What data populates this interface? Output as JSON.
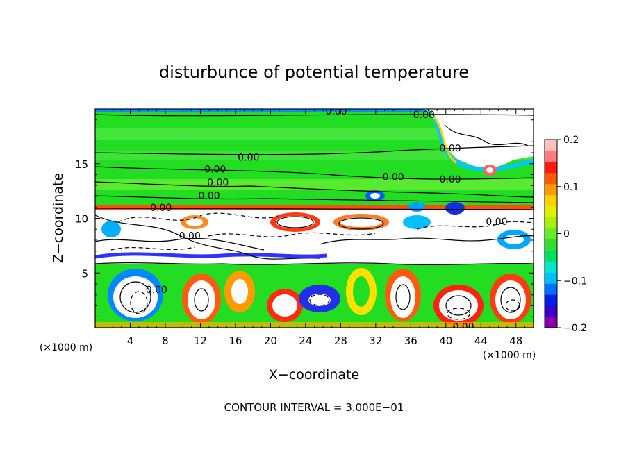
{
  "chart_data": {
    "type": "heatmap",
    "title": "disturbunce of potential temperature",
    "xlabel": "X−coordinate",
    "ylabel": "Z−coordinate",
    "x_unit_note": "(×1000 m)",
    "z_unit_note": "(×1000 m)",
    "xlim": [
      0,
      50
    ],
    "ylim": [
      0,
      20
    ],
    "x_ticks": [
      4,
      8,
      12,
      16,
      20,
      24,
      28,
      32,
      36,
      40,
      44,
      48
    ],
    "y_ticks": [
      5,
      10,
      15
    ],
    "colorbar": {
      "range": [
        -0.2,
        0.2
      ],
      "ticks": [
        {
          "value": 0.2,
          "label": "0.2"
        },
        {
          "value": 0.1,
          "label": "0.1"
        },
        {
          "value": 0,
          "label": "0"
        },
        {
          "value": -0.1,
          "label": "−0.1"
        },
        {
          "value": -0.2,
          "label": "−0.2"
        }
      ],
      "colors": [
        "#8a00a8",
        "#3b00c8",
        "#0020e8",
        "#0070ff",
        "#00bfff",
        "#00e8c8",
        "#00e060",
        "#30e030",
        "#66ee22",
        "#a8f010",
        "#e0f000",
        "#ffd000",
        "#ff9a00",
        "#ff5a00",
        "#ff1a10",
        "#ff7a7a",
        "#ffc0c0"
      ]
    },
    "contour_labels": [
      {
        "x": 27.5,
        "z": 19.8,
        "text": "0.00"
      },
      {
        "x": 37.5,
        "z": 19.5,
        "text": "0.00"
      },
      {
        "x": 40.5,
        "z": 16.4,
        "text": "0.00"
      },
      {
        "x": 17.5,
        "z": 15.6,
        "text": "0.00"
      },
      {
        "x": 13.7,
        "z": 14.5,
        "text": "0.00"
      },
      {
        "x": 34.0,
        "z": 13.8,
        "text": "0.00"
      },
      {
        "x": 40.5,
        "z": 13.6,
        "text": "0.00"
      },
      {
        "x": 14.0,
        "z": 13.3,
        "text": "0.00"
      },
      {
        "x": 13.0,
        "z": 12.1,
        "text": "0.00"
      },
      {
        "x": 7.5,
        "z": 11.0,
        "text": "0.00"
      },
      {
        "x": 10.8,
        "z": 8.4,
        "text": "0.00"
      },
      {
        "x": 45.8,
        "z": 9.7,
        "text": "0.00"
      },
      {
        "x": 7.0,
        "z": 3.5,
        "text": "0.00"
      },
      {
        "x": 42.0,
        "z": 0.1,
        "text": "0.00"
      }
    ],
    "grid": false,
    "legend": "colorbar right"
  },
  "footer": {
    "contour_interval": "CONTOUR INTERVAL = 3.000E−01"
  }
}
